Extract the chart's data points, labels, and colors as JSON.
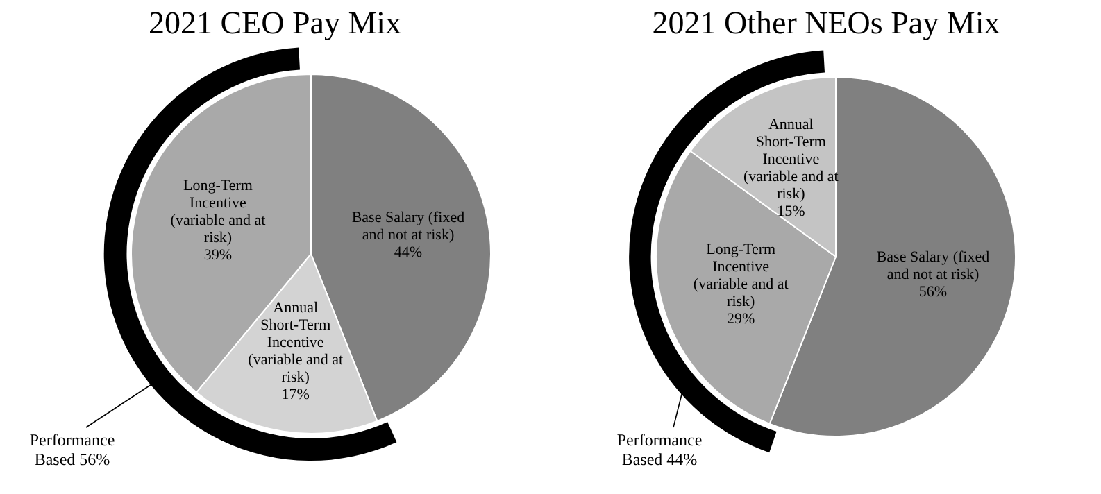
{
  "chart_data": [
    {
      "type": "pie",
      "title": "2021 CEO Pay Mix",
      "categories": [
        "Base Salary (fixed and not at risk)",
        "Annual Short-Term Incentive (variable and at risk)",
        "Long-Term Incentive (variable and at risk)"
      ],
      "values": [
        44,
        17,
        39
      ],
      "colors": [
        "#808080",
        "#d3d3d3",
        "#a9a9a9"
      ],
      "value_labels": [
        "44%",
        "17%",
        "39%"
      ],
      "annotations": [
        "Performance Based 56%"
      ]
    },
    {
      "type": "pie",
      "title": "2021 Other NEOs Pay Mix",
      "categories": [
        "Base Salary (fixed and not at risk)",
        "Long-Term Incentive (variable and at risk)",
        "Annual Short-Term Incentive (variable and at risk)"
      ],
      "values": [
        56,
        29,
        15
      ],
      "colors": [
        "#808080",
        "#a9a9a9",
        "#c4c4c4"
      ],
      "value_labels": [
        "56%",
        "29%",
        "15%"
      ],
      "annotations": [
        "Performance Based 44%"
      ]
    }
  ]
}
